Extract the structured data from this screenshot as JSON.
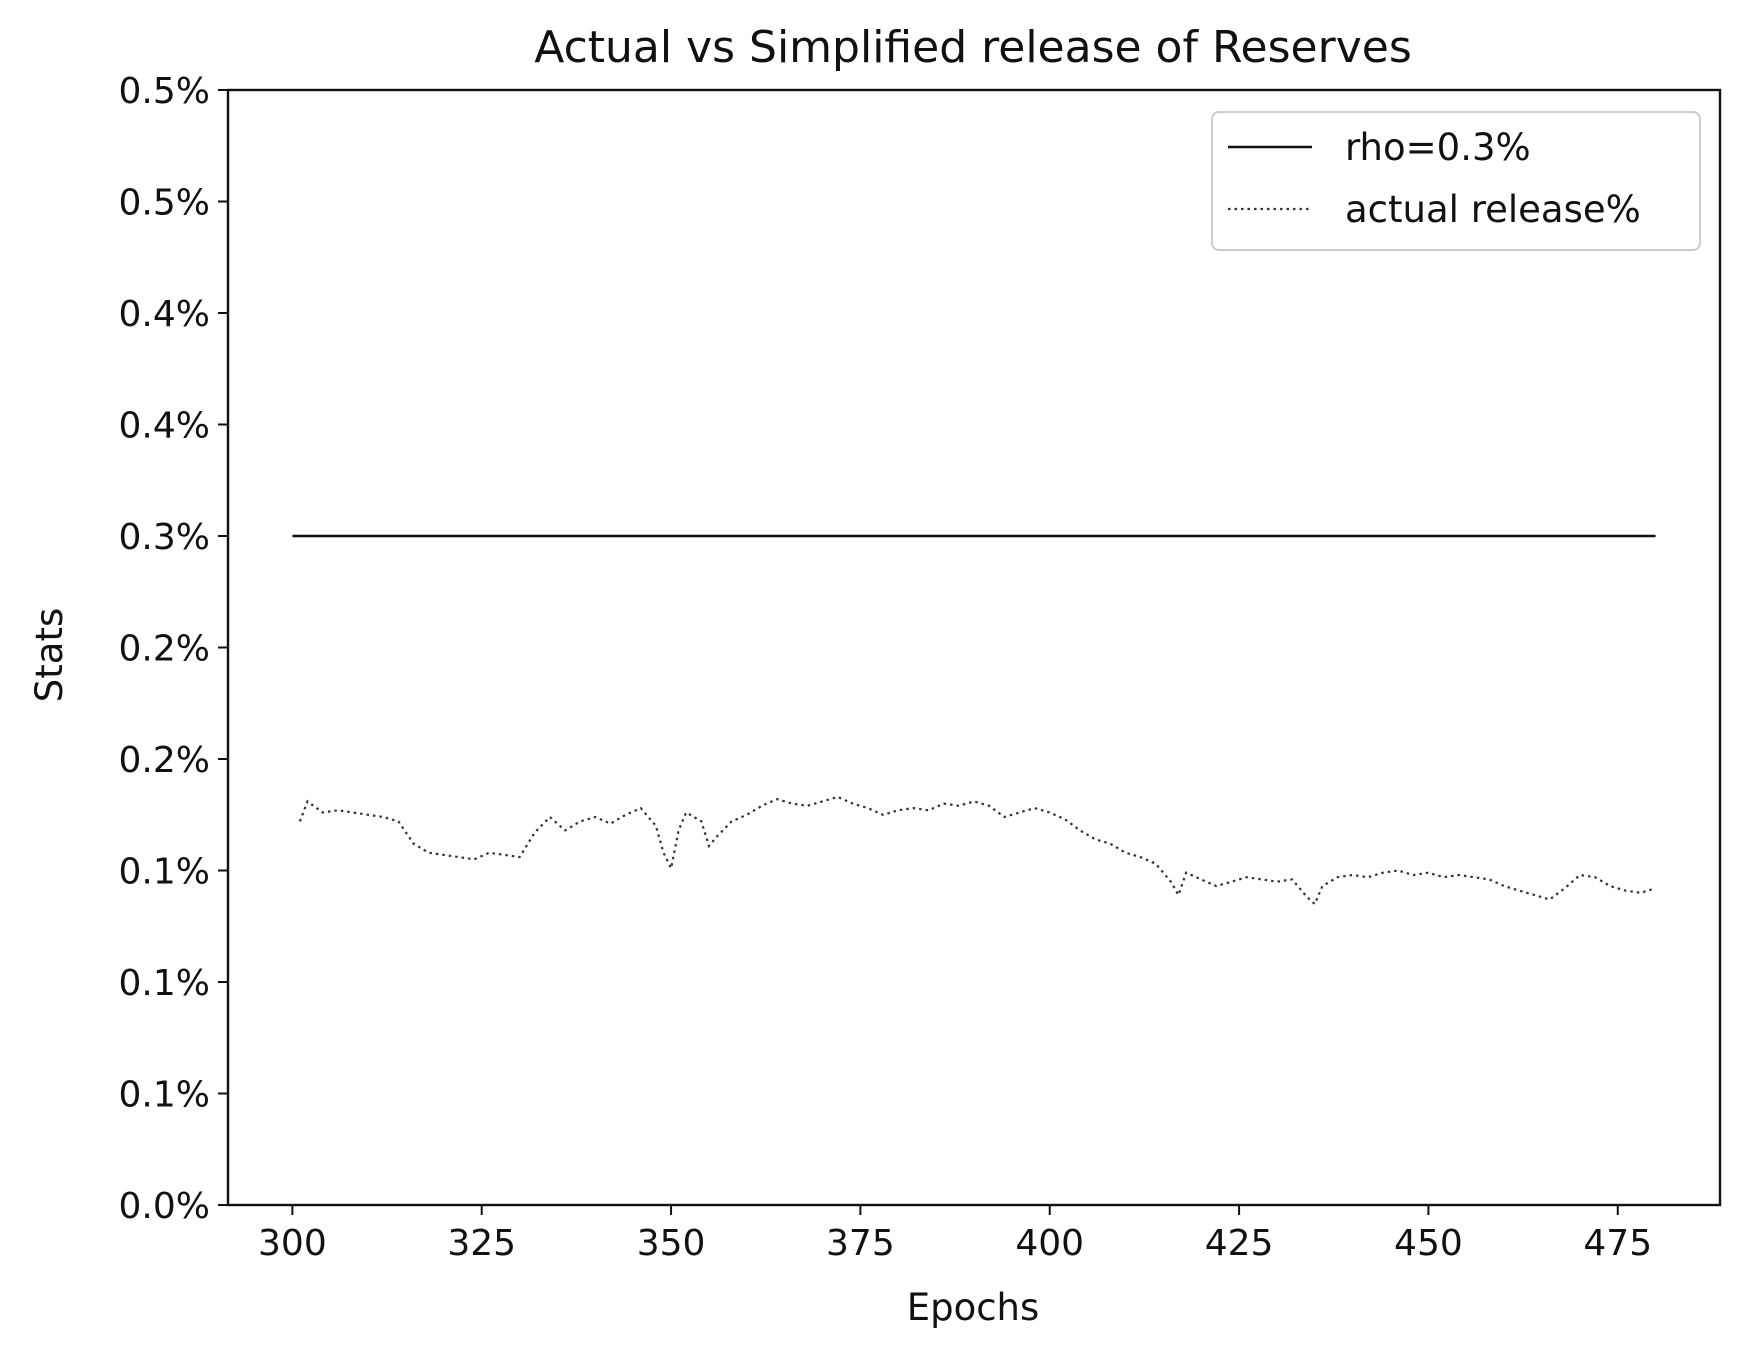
{
  "chart_data": {
    "type": "line",
    "title": "Actual vs Simplified release of Reserves",
    "xlabel": "Epochs",
    "ylabel": "Stats",
    "xlim": [
      291.5,
      488.5
    ],
    "ylim": [
      0.0,
      0.005
    ],
    "x_ticks": [
      300,
      325,
      350,
      375,
      400,
      425,
      450,
      475
    ],
    "x_tick_labels": [
      "300",
      "325",
      "350",
      "375",
      "400",
      "425",
      "450",
      "475"
    ],
    "y_ticks": [
      0.0,
      0.0005,
      0.001,
      0.0015,
      0.002,
      0.0025,
      0.003,
      0.0035,
      0.004,
      0.0045,
      0.005
    ],
    "y_tick_labels": [
      "0.0%",
      "0.1%",
      "0.1%",
      "0.1%",
      "0.2%",
      "0.2%",
      "0.3%",
      "0.4%",
      "0.4%",
      "0.5%",
      "0.5%"
    ],
    "grid": false,
    "legend": {
      "position": "upper right"
    },
    "series": [
      {
        "name": "rho=0.3%",
        "style": "solid",
        "color": "#111111",
        "x": [
          300,
          480
        ],
        "y": [
          0.003,
          0.003
        ]
      },
      {
        "name": "actual release%",
        "style": "dotted",
        "color": "#333333",
        "x": [
          301,
          302,
          304,
          306,
          308,
          310,
          312,
          314,
          316,
          318,
          320,
          322,
          324,
          326,
          328,
          330,
          332,
          334,
          336,
          338,
          340,
          342,
          344,
          346,
          348,
          349,
          350,
          351,
          352,
          354,
          355,
          356,
          358,
          360,
          362,
          364,
          366,
          368,
          370,
          372,
          374,
          376,
          378,
          380,
          382,
          384,
          386,
          388,
          390,
          392,
          394,
          396,
          398,
          400,
          402,
          404,
          406,
          408,
          410,
          412,
          414,
          416,
          417,
          418,
          420,
          422,
          424,
          426,
          428,
          430,
          432,
          434,
          435,
          436,
          438,
          440,
          442,
          444,
          446,
          448,
          450,
          452,
          454,
          456,
          458,
          460,
          462,
          464,
          466,
          468,
          470,
          472,
          474,
          476,
          478,
          480
        ],
        "y": [
          0.00172,
          0.00181,
          0.00176,
          0.00177,
          0.00176,
          0.00175,
          0.00174,
          0.00172,
          0.00162,
          0.00158,
          0.00157,
          0.00156,
          0.00155,
          0.00158,
          0.00157,
          0.00156,
          0.00167,
          0.00174,
          0.00168,
          0.00172,
          0.00174,
          0.00171,
          0.00175,
          0.00178,
          0.0017,
          0.00158,
          0.00151,
          0.00168,
          0.00176,
          0.00172,
          0.00161,
          0.00165,
          0.00172,
          0.00175,
          0.00179,
          0.00182,
          0.0018,
          0.00179,
          0.00181,
          0.00183,
          0.0018,
          0.00178,
          0.00175,
          0.00177,
          0.00178,
          0.00177,
          0.0018,
          0.00179,
          0.00181,
          0.00179,
          0.00174,
          0.00176,
          0.00178,
          0.00176,
          0.00173,
          0.00168,
          0.00164,
          0.00162,
          0.00158,
          0.00156,
          0.00153,
          0.00145,
          0.00139,
          0.00149,
          0.00146,
          0.00143,
          0.00145,
          0.00147,
          0.00146,
          0.00145,
          0.00146,
          0.00138,
          0.00135,
          0.00143,
          0.00147,
          0.00148,
          0.00147,
          0.00149,
          0.0015,
          0.00148,
          0.00149,
          0.00147,
          0.00148,
          0.00147,
          0.00146,
          0.00143,
          0.00141,
          0.00139,
          0.00137,
          0.00142,
          0.00148,
          0.00147,
          0.00143,
          0.00141,
          0.0014,
          0.00142
        ]
      }
    ]
  }
}
